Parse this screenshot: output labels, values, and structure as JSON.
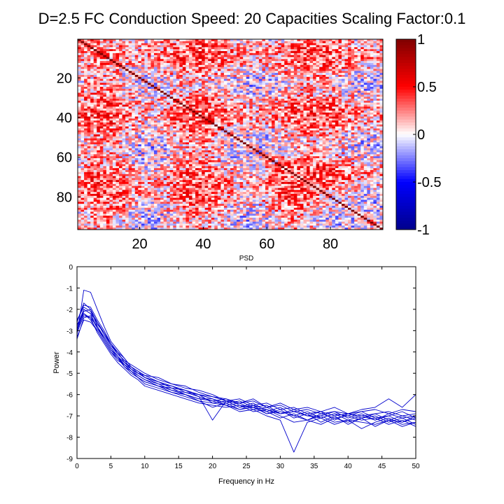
{
  "title": "D=2.5 FC Conduction Speed: 20  Capacities Scaling Factor:0.1",
  "colors": {
    "neg_end": "#00008C",
    "neg_mid": "#0000FF",
    "zero": "#FFFFFF",
    "pos_mid": "#FF0000",
    "pos_end": "#7F0000",
    "psd_line": "#0000CC",
    "axis": "#000000"
  },
  "chart_data": [
    {
      "type": "heatmap",
      "title": "",
      "n": 96,
      "diagonal_value": 1,
      "background_mean": 0.15,
      "background_spread": 0.35,
      "x_ticks": [
        20,
        40,
        60,
        80
      ],
      "y_ticks": [
        20,
        40,
        60,
        80
      ],
      "xlim": [
        0.5,
        96.5
      ],
      "ylim": [
        0.5,
        96.5
      ],
      "colorbar": {
        "range": [
          -1,
          1
        ],
        "ticks": [
          -1,
          -0.5,
          0,
          0.5,
          1
        ],
        "tick_labels": [
          "-1",
          "-0.5",
          "0",
          "0.5",
          "1"
        ],
        "colormap": "blue-white-red"
      }
    },
    {
      "type": "line",
      "title": "PSD",
      "xlabel": "Frequency in Hz",
      "ylabel": "Power",
      "xlim": [
        0,
        50
      ],
      "ylim": [
        -9,
        0
      ],
      "x_ticks": [
        0,
        5,
        10,
        15,
        20,
        25,
        30,
        35,
        40,
        45,
        50
      ],
      "y_ticks": [
        0,
        -1,
        -2,
        -3,
        -4,
        -5,
        -6,
        -7,
        -8,
        -9
      ],
      "x": [
        0,
        1,
        2,
        3,
        4,
        5,
        6,
        7,
        8,
        9,
        10,
        12,
        14,
        16,
        18,
        20,
        22,
        24,
        26,
        28,
        30,
        32,
        34,
        36,
        38,
        40,
        42,
        44,
        46,
        48,
        50
      ],
      "series": [
        {
          "values": [
            -3.2,
            -1.1,
            -1.2,
            -2.0,
            -2.8,
            -3.5,
            -3.9,
            -4.3,
            -4.7,
            -4.9,
            -5.1,
            -5.2,
            -5.5,
            -5.6,
            -5.9,
            -6.1,
            -6.2,
            -6.4,
            -6.3,
            -6.6,
            -6.5,
            -6.8,
            -6.7,
            -6.9,
            -6.8,
            -6.9,
            -6.7,
            -6.6,
            -6.2,
            -6.6,
            -6.0
          ]
        },
        {
          "values": [
            -2.6,
            -1.8,
            -1.9,
            -2.5,
            -3.0,
            -3.6,
            -4.1,
            -4.4,
            -4.6,
            -4.8,
            -5.0,
            -5.3,
            -5.5,
            -5.7,
            -5.8,
            -6.0,
            -6.3,
            -6.2,
            -6.5,
            -6.4,
            -6.7,
            -6.6,
            -6.9,
            -6.8,
            -7.0,
            -6.9,
            -7.1,
            -6.9,
            -6.8,
            -7.0,
            -6.9
          ]
        },
        {
          "values": [
            -3.0,
            -2.0,
            -2.2,
            -2.6,
            -3.2,
            -3.7,
            -4.0,
            -4.5,
            -4.8,
            -5.0,
            -5.2,
            -5.4,
            -5.6,
            -5.8,
            -6.1,
            -6.3,
            -6.2,
            -6.5,
            -6.6,
            -6.5,
            -6.9,
            -6.7,
            -7.0,
            -6.8,
            -7.2,
            -6.9,
            -7.0,
            -7.2,
            -6.9,
            -7.1,
            -7.0
          ]
        },
        {
          "values": [
            -2.9,
            -2.1,
            -2.0,
            -2.8,
            -3.3,
            -3.8,
            -4.2,
            -4.6,
            -4.8,
            -5.1,
            -5.3,
            -5.5,
            -5.8,
            -5.9,
            -6.0,
            -6.4,
            -6.3,
            -6.6,
            -6.4,
            -6.8,
            -6.6,
            -7.0,
            -6.8,
            -7.1,
            -6.9,
            -7.0,
            -6.8,
            -7.1,
            -7.0,
            -6.8,
            -7.1
          ]
        },
        {
          "values": [
            -3.4,
            -2.4,
            -2.3,
            -2.9,
            -3.4,
            -3.9,
            -4.3,
            -4.7,
            -5.0,
            -5.2,
            -5.4,
            -5.6,
            -5.7,
            -6.0,
            -6.2,
            -6.2,
            -6.5,
            -6.4,
            -6.7,
            -6.6,
            -6.9,
            -6.8,
            -7.0,
            -7.1,
            -6.9,
            -7.2,
            -7.0,
            -6.9,
            -7.2,
            -7.0,
            -7.2
          ]
        },
        {
          "values": [
            -2.7,
            -2.2,
            -2.5,
            -3.0,
            -3.5,
            -4.0,
            -4.4,
            -4.6,
            -4.9,
            -5.2,
            -5.5,
            -5.7,
            -5.9,
            -6.1,
            -6.3,
            -6.6,
            -6.4,
            -6.7,
            -6.5,
            -6.9,
            -6.7,
            -7.1,
            -6.9,
            -7.3,
            -7.0,
            -7.4,
            -7.1,
            -7.0,
            -7.3,
            -7.1,
            -7.4
          ]
        },
        {
          "values": [
            -3.1,
            -2.3,
            -2.4,
            -3.1,
            -3.6,
            -4.1,
            -4.5,
            -4.8,
            -5.1,
            -5.3,
            -5.6,
            -5.8,
            -6.0,
            -6.2,
            -6.4,
            -6.5,
            -6.6,
            -6.5,
            -6.8,
            -6.7,
            -7.0,
            -7.3,
            -7.2,
            -7.0,
            -7.3,
            -7.2,
            -7.6,
            -7.3,
            -7.1,
            -7.4,
            -7.3
          ]
        },
        {
          "values": [
            -2.5,
            -1.9,
            -2.1,
            -2.7,
            -3.1,
            -3.6,
            -4.0,
            -4.3,
            -4.7,
            -4.9,
            -5.2,
            -5.4,
            -5.7,
            -5.8,
            -6.0,
            -6.2,
            -6.4,
            -6.3,
            -6.6,
            -6.9,
            -6.8,
            -7.0,
            -7.2,
            -6.9,
            -7.1,
            -7.0,
            -7.2,
            -7.1,
            -7.4,
            -7.2,
            -7.5
          ]
        },
        {
          "values": [
            -3.3,
            -2.5,
            -2.6,
            -3.0,
            -3.5,
            -4.0,
            -4.3,
            -4.6,
            -4.9,
            -5.1,
            -5.3,
            -5.6,
            -5.9,
            -6.0,
            -6.2,
            -6.3,
            -6.5,
            -6.7,
            -6.6,
            -6.8,
            -7.1,
            -6.9,
            -7.2,
            -7.4,
            -7.1,
            -7.3,
            -7.1,
            -7.5,
            -7.2,
            -7.3,
            -7.1
          ]
        },
        {
          "values": [
            -2.8,
            -2.0,
            -2.2,
            -2.9,
            -3.3,
            -3.8,
            -4.2,
            -4.5,
            -4.7,
            -5.0,
            -5.2,
            -5.5,
            -5.6,
            -5.9,
            -6.1,
            -7.2,
            -6.3,
            -6.6,
            -6.5,
            -6.7,
            -6.9,
            -6.8,
            -7.0,
            -7.0,
            -6.8,
            -7.1,
            -6.9,
            -7.2,
            -7.0,
            -7.3,
            -7.0
          ]
        },
        {
          "values": [
            -3.0,
            -2.2,
            -2.4,
            -2.8,
            -3.4,
            -3.9,
            -4.2,
            -4.7,
            -4.9,
            -5.2,
            -5.4,
            -5.6,
            -5.8,
            -6.0,
            -6.3,
            -6.4,
            -6.5,
            -6.8,
            -6.7,
            -7.0,
            -7.2,
            -8.7,
            -7.3,
            -7.1,
            -7.4,
            -7.2,
            -7.3,
            -7.4,
            -7.2,
            -7.5,
            -7.3
          ]
        },
        {
          "values": [
            -2.6,
            -1.7,
            -2.0,
            -2.6,
            -3.1,
            -3.7,
            -4.1,
            -4.4,
            -4.8,
            -5.0,
            -5.1,
            -5.4,
            -5.6,
            -5.8,
            -6.0,
            -6.1,
            -6.3,
            -6.4,
            -6.2,
            -6.6,
            -6.4,
            -6.7,
            -6.6,
            -6.8,
            -6.6,
            -6.9,
            -6.8,
            -6.7,
            -6.9,
            -6.7,
            -6.8
          ]
        }
      ]
    }
  ]
}
